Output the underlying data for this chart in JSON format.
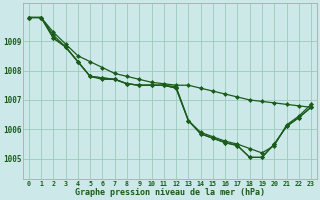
{
  "xlabel": "Graphe pression niveau de la mer (hPa)",
  "xlim": [
    -0.5,
    23.5
  ],
  "ylim": [
    1004.3,
    1010.3
  ],
  "yticks": [
    1005,
    1006,
    1007,
    1008,
    1009
  ],
  "xticks": [
    0,
    1,
    2,
    3,
    4,
    5,
    6,
    7,
    8,
    9,
    10,
    11,
    12,
    13,
    14,
    15,
    16,
    17,
    18,
    19,
    20,
    21,
    22,
    23
  ],
  "background_color": "#cce8e8",
  "grid_color": "#99ccbb",
  "line_color": "#1a5c1a",
  "series": [
    [
      1009.8,
      1009.8,
      1009.3,
      1008.9,
      1008.5,
      1008.3,
      1008.1,
      1007.9,
      1007.8,
      1007.7,
      1007.6,
      1007.55,
      1007.5,
      1007.5,
      1007.4,
      1007.3,
      1007.2,
      1007.1,
      1007.0,
      1006.95,
      1006.9,
      1006.85,
      1006.8,
      1006.75
    ],
    [
      1009.8,
      1009.8,
      1009.2,
      1008.8,
      1008.3,
      1007.8,
      1007.7,
      1007.7,
      1007.55,
      1007.5,
      1007.5,
      1007.5,
      1007.45,
      1006.3,
      1005.9,
      1005.75,
      1005.6,
      1005.5,
      1005.35,
      1005.2,
      1005.45,
      1006.15,
      1006.45,
      1006.85
    ],
    [
      1009.8,
      1009.8,
      1009.1,
      1008.8,
      1008.3,
      1007.8,
      1007.75,
      1007.7,
      1007.55,
      1007.5,
      1007.5,
      1007.5,
      1007.4,
      1006.3,
      1005.85,
      1005.7,
      1005.55,
      1005.45,
      1005.05,
      1005.05,
      1005.5,
      1006.1,
      1006.4,
      1006.75
    ],
    [
      1009.8,
      1009.8,
      1009.1,
      1008.8,
      1008.3,
      1007.8,
      1007.75,
      1007.7,
      1007.55,
      1007.5,
      1007.5,
      1007.5,
      1007.4,
      1006.3,
      1005.85,
      1005.7,
      1005.55,
      1005.45,
      1005.05,
      1005.05,
      1005.5,
      1006.1,
      1006.4,
      1006.75
    ]
  ]
}
